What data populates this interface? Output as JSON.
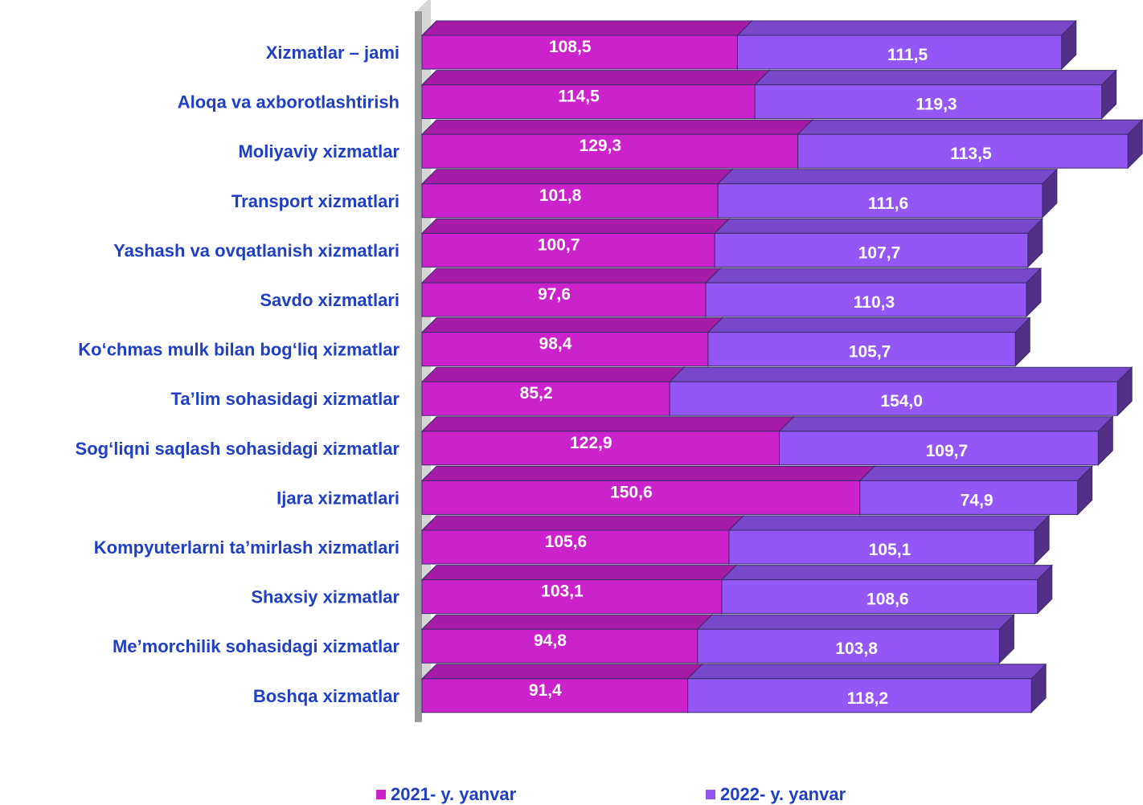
{
  "chart_data": {
    "type": "bar",
    "orientation": "horizontal",
    "stacked": true,
    "categories": [
      "Xizmatlar – jami",
      "Aloqa va axborotlashtirish",
      "Moliyaviy xizmatlar",
      "Transport xizmatlari",
      "Yashash va ovqatlanish xizmatlari",
      "Savdo xizmatlari",
      "Ko‘chmas mulk bilan bog‘liq xizmatlar",
      "Ta’lim sohasidagi xizmatlar",
      "Sog‘liqni saqlash sohasidagi xizmatlar",
      "Ijara xizmatlari",
      "Kompyuterlarni ta’mirlash xizmatlari",
      "Shaxsiy xizmatlar",
      "Me’morchilik sohasidagi xizmatlar",
      "Boshqa xizmatlar"
    ],
    "series": [
      {
        "name": "2021- y. yanvar",
        "color": "#cc22cc",
        "values": [
          108.5,
          114.5,
          129.3,
          101.8,
          100.7,
          97.6,
          98.4,
          85.2,
          122.9,
          150.6,
          105.6,
          103.1,
          94.8,
          91.4
        ],
        "labels": [
          "108,5",
          "114,5",
          "129,3",
          "101,8",
          "100,7",
          "97,6",
          "98,4",
          "85,2",
          "122,9",
          "150,6",
          "105,6",
          "103,1",
          "94,8",
          "91,4"
        ]
      },
      {
        "name": "2022- y. yanvar",
        "color": "#9457f5",
        "values": [
          111.5,
          119.3,
          113.5,
          111.6,
          107.7,
          110.3,
          105.7,
          154.0,
          109.7,
          74.9,
          105.1,
          108.6,
          103.8,
          118.2
        ],
        "labels": [
          "111,5",
          "119,3",
          "113,5",
          "111,6",
          "107,7",
          "110,3",
          "105,7",
          "154,0",
          "109,7",
          "74,9",
          "105,1",
          "108,6",
          "103,8",
          "118,2"
        ]
      }
    ],
    "xlabel": "",
    "ylabel": "",
    "grid": false,
    "legend_position": "bottom"
  }
}
